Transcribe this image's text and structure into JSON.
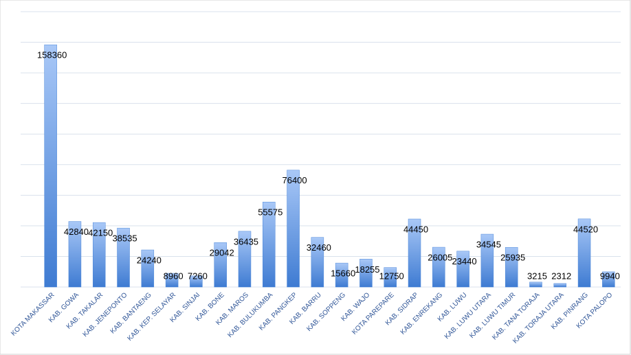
{
  "chart_data": {
    "type": "bar",
    "categories": [
      "KOTA MAKASSAR",
      "KAB. GOWA",
      "KAB. TAKALAR",
      "KAB. JENEPONTO",
      "KAB. BANTAENG",
      "KAB. KEP. SELAYAR",
      "KAB. SINJAI",
      "KAB. BONE",
      "KAB. MAROS",
      "KAB. BULUKUMBA",
      "KAB. PANGKEP",
      "KAB. BARRU",
      "KAB. SOPPENG",
      "KAB. WAJO",
      "KOTA PAREPARE",
      "KAB. SIDRAP",
      "KAB. ENREKANG",
      "KAB. LUWU",
      "KAB. LUWU UTARA",
      "KAB. LUWU TIMUR",
      "KAB. TANA TORAJA",
      "KAB. TORAJA UTARA",
      "KAB. PINRANG",
      "KOTA PALOPO"
    ],
    "values": [
      158360,
      42840,
      42150,
      38535,
      24240,
      8960,
      7260,
      29042,
      36435,
      55575,
      76400,
      32460,
      15660,
      18255,
      12750,
      44450,
      26005,
      23440,
      34545,
      25935,
      3215,
      2312,
      44520,
      9940
    ],
    "color": "#4a86d8",
    "ylim": [
      0,
      180000
    ],
    "yticks": [
      0,
      20000,
      40000,
      60000,
      80000,
      100000,
      120000,
      140000,
      160000,
      180000
    ],
    "grid": true
  }
}
